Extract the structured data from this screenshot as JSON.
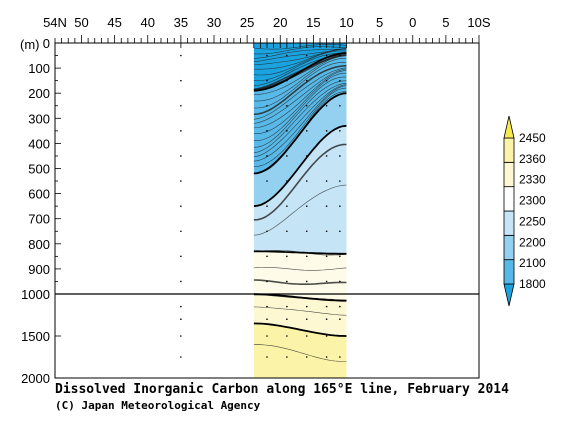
{
  "chart_data": {
    "type": "heatmap",
    "title": "Dissolved Inorganic Carbon along 165°E line, February 2014",
    "credit": "(C) Japan Meteorological Agency",
    "ylabel": "(m)",
    "x_ticks": [
      "54N",
      "50",
      "45",
      "40",
      "35",
      "30",
      "25",
      "20",
      "15",
      "10",
      "5",
      "0",
      "5",
      "10S"
    ],
    "x_tick_values": [
      54,
      50,
      45,
      40,
      35,
      30,
      25,
      20,
      15,
      10,
      5,
      0,
      -5,
      -10
    ],
    "xlim": [
      54,
      -10
    ],
    "y_upper_ticks": [
      "0",
      "100",
      "200",
      "300",
      "400",
      "500",
      "600",
      "700",
      "800",
      "900",
      "1000"
    ],
    "y_upper_values": [
      0,
      100,
      200,
      300,
      400,
      500,
      600,
      700,
      800,
      900,
      1000
    ],
    "y_lower_ticks": [
      "1500",
      "2000"
    ],
    "y_lower_values": [
      1500,
      2000
    ],
    "ylim": [
      0,
      2000
    ],
    "data_lat_range": [
      24,
      10
    ],
    "isolated_station_lat": 35,
    "colorbar": {
      "labels": [
        "2450",
        "2360",
        "2330",
        "2300",
        "2250",
        "2200",
        "2100",
        "1800"
      ],
      "levels": [
        1800,
        2100,
        2200,
        2250,
        2300,
        2330,
        2360,
        2450
      ],
      "colors": [
        "#1ba3df",
        "#58b9e8",
        "#94d0f0",
        "#c5e4f6",
        "#ffffff",
        "#fdf8d2",
        "#fbf3a8",
        "#f7e950"
      ]
    },
    "bands": [
      {
        "upper_depth_at_24N": 0,
        "upper_depth_at_10N": 0,
        "fill": "#1ba3df"
      },
      {
        "upper_depth_at_24N": 190,
        "upper_depth_at_10N": 40,
        "fill": "#58b9e8"
      },
      {
        "upper_depth_at_24N": 520,
        "upper_depth_at_10N": 200,
        "fill": "#94d0f0"
      },
      {
        "upper_depth_at_24N": 650,
        "upper_depth_at_10N": 330,
        "fill": "#c5e4f6"
      },
      {
        "upper_depth_at_24N": 830,
        "upper_depth_at_10N": 840,
        "fill": "#fefbe8"
      },
      {
        "upper_depth_at_24N": 1003,
        "upper_depth_at_10N": 1080,
        "fill": "#fdf8d2"
      },
      {
        "upper_depth_at_24N": 1350,
        "upper_depth_at_10N": 1500,
        "fill": "#fbf3a8"
      }
    ]
  }
}
